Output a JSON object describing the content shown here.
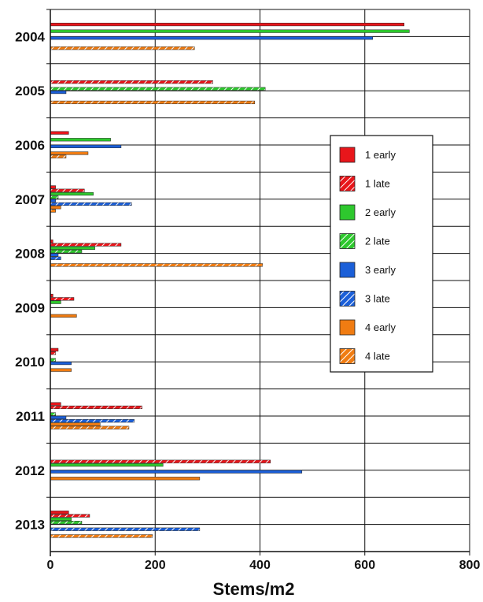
{
  "chart_data": {
    "type": "bar",
    "orientation": "horizontal",
    "xlabel": "Stems/m2",
    "xlim": [
      0,
      800
    ],
    "xticks": [
      "0",
      "200",
      "400",
      "600",
      "800"
    ],
    "grid": true,
    "legend_position": "right",
    "categories": [
      "2004",
      "2005",
      "2006",
      "2007",
      "2008",
      "2009",
      "2010",
      "2011",
      "2012",
      "2013"
    ],
    "series": [
      {
        "name": "1 early",
        "color": "#e8161b",
        "pattern": "solid",
        "values": [
          675,
          0,
          35,
          10,
          5,
          5,
          15,
          20,
          0,
          35
        ]
      },
      {
        "name": "1 late",
        "color": "#e8161b",
        "pattern": "hatched",
        "values": [
          0,
          310,
          0,
          65,
          135,
          45,
          10,
          175,
          420,
          75
        ]
      },
      {
        "name": "2 early",
        "color": "#2ec82e",
        "pattern": "solid",
        "values": [
          685,
          0,
          115,
          82,
          85,
          20,
          0,
          0,
          215,
          40
        ]
      },
      {
        "name": "2 late",
        "color": "#2ec82e",
        "pattern": "hatched",
        "values": [
          0,
          410,
          0,
          15,
          60,
          0,
          10,
          10,
          0,
          60
        ]
      },
      {
        "name": "3 early",
        "color": "#1b5fd8",
        "pattern": "solid",
        "values": [
          615,
          30,
          135,
          10,
          15,
          0,
          40,
          30,
          480,
          0
        ]
      },
      {
        "name": "3 late",
        "color": "#1b5fd8",
        "pattern": "hatched",
        "values": [
          0,
          0,
          0,
          155,
          20,
          0,
          0,
          160,
          0,
          285
        ]
      },
      {
        "name": "4 early",
        "color": "#f07c12",
        "pattern": "solid",
        "values": [
          0,
          0,
          72,
          20,
          0,
          50,
          40,
          95,
          285,
          0
        ]
      },
      {
        "name": "4 late",
        "color": "#f07c12",
        "pattern": "hatched",
        "values": [
          275,
          390,
          30,
          10,
          405,
          0,
          0,
          150,
          0,
          195
        ]
      }
    ]
  }
}
